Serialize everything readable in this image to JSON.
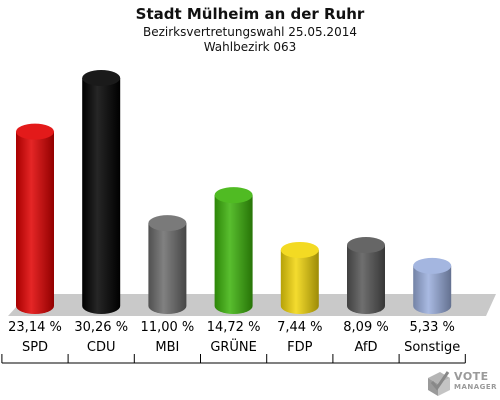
{
  "header": {
    "title": "Stadt Mülheim an der Ruhr",
    "subtitle": "Bezirksvertretungswahl 25.05.2014",
    "district": "Wahlbezirk 063"
  },
  "chart_data": {
    "type": "bar",
    "categories": [
      "SPD",
      "CDU",
      "MBI",
      "GRÜNE",
      "FDP",
      "AfD",
      "Sonstige"
    ],
    "values": [
      23.14,
      30.26,
      11.0,
      14.72,
      7.44,
      8.09,
      5.33
    ],
    "value_labels": [
      "23,14 %",
      "30,26 %",
      "11,00 %",
      "14,72 %",
      "7,44 %",
      "8,09 %",
      "5,33 %"
    ],
    "colors": [
      "#e00000",
      "#000000",
      "#6b6b6b",
      "#3cb30a",
      "#f2d60a",
      "#555555",
      "#9aaedd"
    ],
    "ylim": [
      0,
      30.26
    ]
  },
  "logo": {
    "line1": "VOTE",
    "line2": "MANAGER",
    "color": "#9a9a9a"
  }
}
